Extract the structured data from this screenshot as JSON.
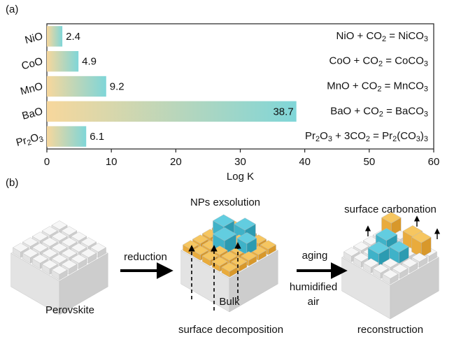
{
  "panels": [
    "(a)",
    "(b)"
  ],
  "chart_data": {
    "type": "bar",
    "orientation": "horizontal",
    "categories": [
      "NiO",
      "CoO",
      "MnO",
      "BaO",
      "Pr2O3"
    ],
    "values": [
      2.4,
      4.9,
      9.2,
      38.7,
      6.1
    ],
    "annotations": [
      "NiO + CO2 = NiCO3",
      "CoO + CO2 = CoCO3",
      "MnO + CO2 = MnCO3",
      "BaO + CO2 = BaCO3",
      "Pr2O3 + 3CO2 = Pr2(CO3)3"
    ],
    "xlabel": "Log K",
    "xlim": [
      0,
      60
    ],
    "xticks": [
      0,
      10,
      20,
      30,
      40,
      50,
      60
    ],
    "gradient": [
      "#f7d79c",
      "#7fd6d8"
    ],
    "grid": false
  },
  "diagram": {
    "perovskite": "Perovskite",
    "reduction": "reduction",
    "exsolution": "NPs exsolution",
    "bulk": "Bulk",
    "decomposition": "surface decomposition",
    "aging": "aging",
    "humidified": [
      "humidified",
      "air"
    ],
    "carbonation": "surface carbonation",
    "reconstruction": "reconstruction"
  }
}
